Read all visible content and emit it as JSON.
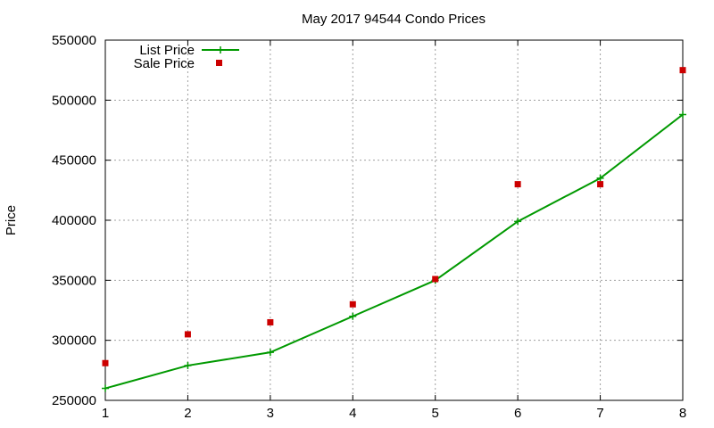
{
  "chart_data": {
    "type": "line",
    "title": "May 2017 94544 Condo Prices",
    "xlabel": "",
    "ylabel": "Price",
    "x": [
      1,
      2,
      3,
      4,
      5,
      6,
      7,
      8
    ],
    "xlim": [
      1,
      8
    ],
    "ylim": [
      250000,
      550000
    ],
    "xticks": [
      "1",
      "2",
      "3",
      "4",
      "5",
      "6",
      "7",
      "8"
    ],
    "yticks": [
      "250000",
      "300000",
      "350000",
      "400000",
      "450000",
      "500000",
      "550000"
    ],
    "grid": true,
    "legend_position": "top-left",
    "series": [
      {
        "name": "List Price",
        "style": "line-with-plus-markers",
        "color": "#009900",
        "values": [
          260000,
          279000,
          290000,
          320000,
          350000,
          399000,
          435000,
          488000
        ]
      },
      {
        "name": "Sale Price",
        "style": "square-markers",
        "color": "#cc0000",
        "values": [
          281000,
          305000,
          315000,
          330000,
          351000,
          430000,
          430000,
          525000
        ]
      }
    ]
  }
}
